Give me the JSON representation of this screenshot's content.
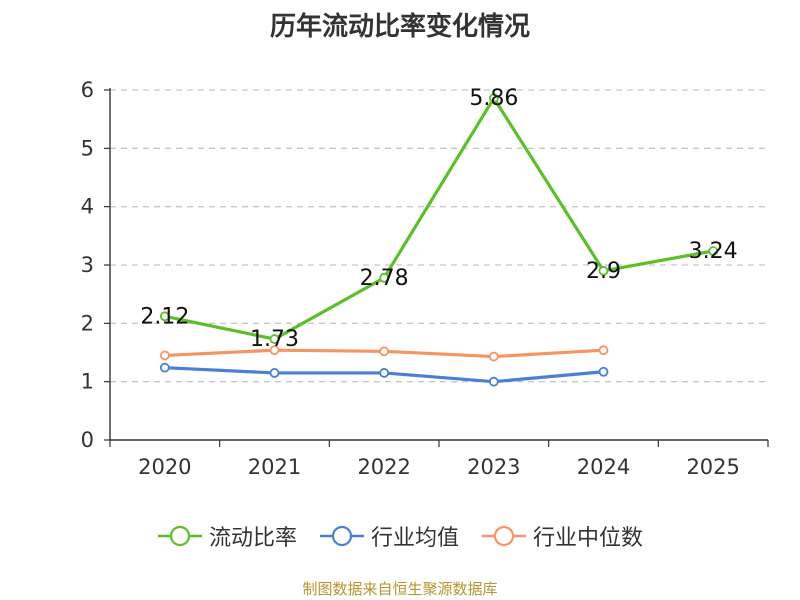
{
  "chart_data": {
    "type": "line",
    "title": "历年流动比率变化情况",
    "categories": [
      "2020",
      "2021",
      "2022",
      "2023",
      "2024",
      "2025"
    ],
    "ylim": [
      0,
      6
    ],
    "yticks": [
      0,
      1,
      2,
      3,
      4,
      5,
      6
    ],
    "grid": true,
    "legend_position": "bottom",
    "series": [
      {
        "name": "流动比率",
        "color": "#5cbf28",
        "values": [
          2.12,
          1.73,
          2.78,
          5.86,
          2.9,
          3.24
        ],
        "labels": [
          "2.12",
          "1.73",
          "2.78",
          "5.86",
          "2.9",
          "3.24"
        ]
      },
      {
        "name": "行业均值",
        "color": "#4a7fd6",
        "values": [
          1.24,
          1.15,
          1.15,
          1.0,
          1.17,
          null
        ]
      },
      {
        "name": "行业中位数",
        "color": "#f59563",
        "values": [
          1.45,
          1.54,
          1.52,
          1.43,
          1.54,
          null
        ]
      }
    ]
  },
  "source": "制图数据来自恒生聚源数据库"
}
